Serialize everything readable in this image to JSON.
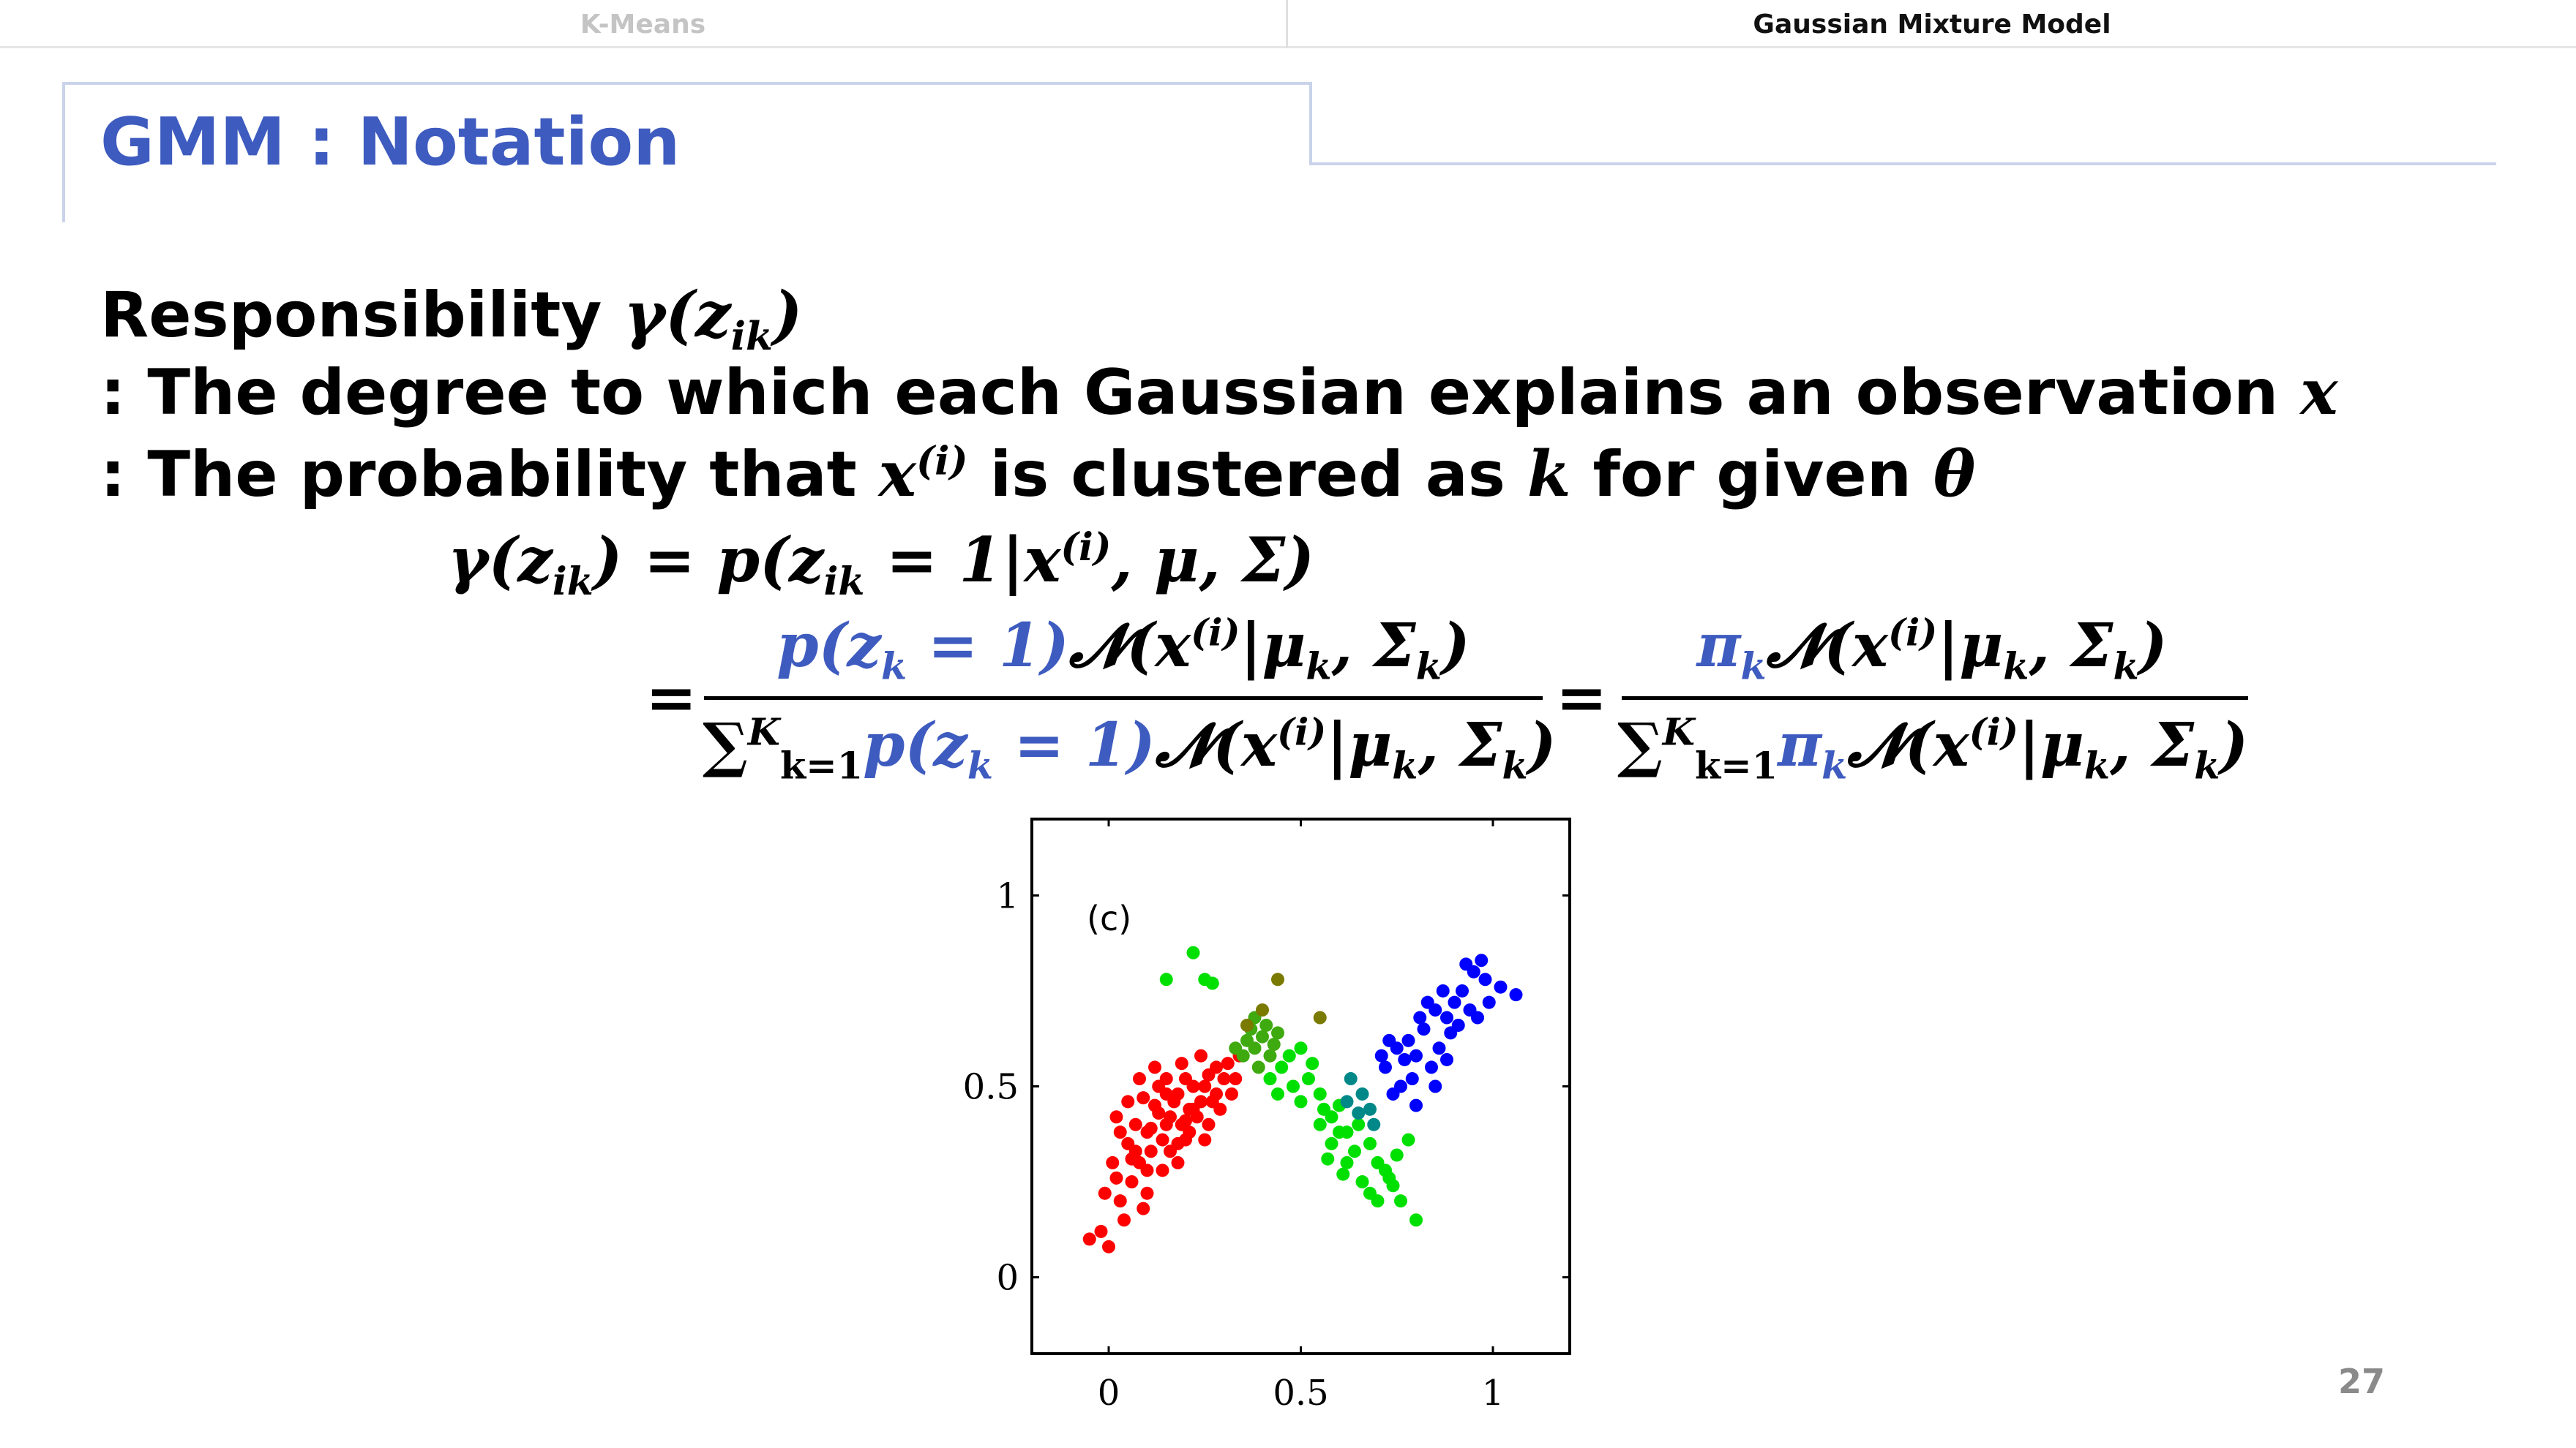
{
  "tabs": [
    {
      "label": "K-Means",
      "active": false
    },
    {
      "label": "Gaussian Mixture Model",
      "active": true
    }
  ],
  "slide_title": "GMM : Notation",
  "lines": {
    "l1_text": "Responsibility ",
    "l1_math": "γ(z",
    "l1_sub": "ik",
    "l1_close": ")",
    "l2_text": ": The degree to which each Gaussian explains an observation ",
    "l2_math": "x",
    "l3_text_a": ": The probability that ",
    "l3_x": "x",
    "l3_sup": "(i)",
    "l3_text_b": " is clustered as ",
    "l3_k": "k",
    "l3_text_c": " for given ",
    "l3_theta": "θ"
  },
  "equation": {
    "lhs": "γ(z",
    "lhs_sub": "ik",
    "lhs_close": ") = p(z",
    "rhs1_sub": "ik",
    "rhs1_rest": " = 1|x",
    "rhs1_sup": "(i)",
    "rhs1_end": ", μ, Σ)",
    "eq_sign": "=",
    "f1_num_blue": "p(z",
    "f1_num_blue_sub": "k",
    "f1_num_blue_end": " = 1)",
    "f1_num_rest": "𝓝(x",
    "f1_num_sup": "(i)",
    "f1_num_end": "|μ",
    "f1_num_sub2": "k",
    "f1_num_end2": ", Σ",
    "f1_num_sub3": "k",
    "f1_num_end3": ")",
    "sum_sym": "∑",
    "sum_top": "K",
    "sum_bot": "k=1",
    "f2_num_blue": "π",
    "f2_num_blue_sub": "k"
  },
  "chart_data": {
    "type": "scatter",
    "panel_label": "(c)",
    "xlim": [
      -0.2,
      1.2
    ],
    "ylim": [
      -0.2,
      1.2
    ],
    "x_ticks": [
      "0",
      "0.5",
      "1"
    ],
    "x_tick_values": [
      0,
      0.5,
      1
    ],
    "y_ticks": [
      "0",
      "0.5",
      "1"
    ],
    "y_tick_values": [
      0,
      0.5,
      1
    ],
    "series": [
      {
        "color": "#ff0000",
        "points": [
          [
            0.02,
            0.42
          ],
          [
            0.05,
            0.35
          ],
          [
            0.08,
            0.3
          ],
          [
            0.1,
            0.38
          ],
          [
            0.12,
            0.45
          ],
          [
            0.15,
            0.4
          ],
          [
            0.18,
            0.48
          ],
          [
            0.2,
            0.36
          ],
          [
            0.22,
            0.44
          ],
          [
            0.25,
            0.5
          ],
          [
            0.06,
            0.25
          ],
          [
            0.03,
            0.2
          ],
          [
            -0.02,
            0.12
          ],
          [
            -0.05,
            0.1
          ],
          [
            0.0,
            0.08
          ],
          [
            0.04,
            0.15
          ],
          [
            0.1,
            0.22
          ],
          [
            0.14,
            0.28
          ],
          [
            0.16,
            0.33
          ],
          [
            0.19,
            0.4
          ],
          [
            0.23,
            0.42
          ],
          [
            0.27,
            0.46
          ],
          [
            0.3,
            0.52
          ],
          [
            0.28,
            0.55
          ],
          [
            0.24,
            0.58
          ],
          [
            0.2,
            0.52
          ],
          [
            0.17,
            0.46
          ],
          [
            0.13,
            0.5
          ],
          [
            0.09,
            0.47
          ],
          [
            0.07,
            0.4
          ],
          [
            0.11,
            0.33
          ],
          [
            0.14,
            0.36
          ],
          [
            0.18,
            0.3
          ],
          [
            0.21,
            0.38
          ],
          [
            0.26,
            0.4
          ],
          [
            0.29,
            0.44
          ],
          [
            0.32,
            0.48
          ],
          [
            0.12,
            0.55
          ],
          [
            0.08,
            0.52
          ],
          [
            0.05,
            0.46
          ],
          [
            0.01,
            0.3
          ],
          [
            0.03,
            0.38
          ],
          [
            0.16,
            0.42
          ],
          [
            0.22,
            0.5
          ],
          [
            0.26,
            0.53
          ],
          [
            0.31,
            0.56
          ],
          [
            0.34,
            0.58
          ],
          [
            0.19,
            0.56
          ],
          [
            0.15,
            0.52
          ],
          [
            0.1,
            0.28
          ],
          [
            -0.01,
            0.22
          ],
          [
            0.02,
            0.26
          ],
          [
            0.07,
            0.33
          ],
          [
            0.13,
            0.43
          ],
          [
            0.24,
            0.46
          ],
          [
            0.28,
            0.48
          ],
          [
            0.33,
            0.52
          ],
          [
            0.18,
            0.35
          ],
          [
            0.21,
            0.44
          ],
          [
            0.25,
            0.36
          ],
          [
            0.09,
            0.18
          ],
          [
            0.06,
            0.31
          ],
          [
            0.15,
            0.48
          ],
          [
            0.2,
            0.41
          ],
          [
            0.11,
            0.39
          ]
        ]
      },
      {
        "color": "#00e000",
        "points": [
          [
            0.45,
            0.55
          ],
          [
            0.48,
            0.5
          ],
          [
            0.5,
            0.46
          ],
          [
            0.52,
            0.52
          ],
          [
            0.55,
            0.48
          ],
          [
            0.58,
            0.42
          ],
          [
            0.6,
            0.45
          ],
          [
            0.62,
            0.38
          ],
          [
            0.65,
            0.4
          ],
          [
            0.68,
            0.35
          ],
          [
            0.7,
            0.3
          ],
          [
            0.72,
            0.28
          ],
          [
            0.66,
            0.25
          ],
          [
            0.62,
            0.3
          ],
          [
            0.58,
            0.35
          ],
          [
            0.55,
            0.4
          ],
          [
            0.75,
            0.32
          ],
          [
            0.78,
            0.36
          ],
          [
            0.74,
            0.24
          ],
          [
            0.7,
            0.2
          ],
          [
            0.68,
            0.22
          ],
          [
            0.64,
            0.33
          ],
          [
            0.6,
            0.38
          ],
          [
            0.56,
            0.44
          ],
          [
            0.53,
            0.56
          ],
          [
            0.5,
            0.6
          ],
          [
            0.47,
            0.58
          ],
          [
            0.44,
            0.48
          ],
          [
            0.42,
            0.52
          ],
          [
            0.8,
            0.15
          ],
          [
            0.61,
            0.27
          ],
          [
            0.57,
            0.31
          ],
          [
            0.73,
            0.26
          ],
          [
            0.76,
            0.2
          ],
          [
            0.15,
            0.78
          ],
          [
            0.22,
            0.85
          ],
          [
            0.27,
            0.77
          ],
          [
            0.25,
            0.78
          ]
        ]
      },
      {
        "color": "#3faa10",
        "points": [
          [
            0.35,
            0.58
          ],
          [
            0.38,
            0.6
          ],
          [
            0.4,
            0.63
          ],
          [
            0.37,
            0.65
          ],
          [
            0.42,
            0.58
          ],
          [
            0.39,
            0.55
          ],
          [
            0.36,
            0.62
          ],
          [
            0.41,
            0.66
          ],
          [
            0.43,
            0.61
          ],
          [
            0.33,
            0.6
          ],
          [
            0.38,
            0.68
          ],
          [
            0.44,
            0.64
          ]
        ]
      },
      {
        "color": "#7a7a00",
        "points": [
          [
            0.44,
            0.78
          ],
          [
            0.55,
            0.68
          ],
          [
            0.36,
            0.66
          ],
          [
            0.4,
            0.7
          ]
        ]
      },
      {
        "color": "#008888",
        "points": [
          [
            0.63,
            0.52
          ],
          [
            0.66,
            0.48
          ],
          [
            0.68,
            0.44
          ],
          [
            0.65,
            0.43
          ],
          [
            0.69,
            0.4
          ],
          [
            0.62,
            0.46
          ]
        ]
      },
      {
        "color": "#0000ff",
        "points": [
          [
            0.72,
            0.55
          ],
          [
            0.75,
            0.6
          ],
          [
            0.78,
            0.62
          ],
          [
            0.8,
            0.58
          ],
          [
            0.82,
            0.65
          ],
          [
            0.85,
            0.7
          ],
          [
            0.88,
            0.68
          ],
          [
            0.9,
            0.72
          ],
          [
            0.92,
            0.75
          ],
          [
            0.95,
            0.8
          ],
          [
            0.98,
            0.78
          ],
          [
            1.02,
            0.76
          ],
          [
            1.06,
            0.74
          ],
          [
            0.93,
            0.82
          ],
          [
            0.97,
            0.83
          ],
          [
            0.86,
            0.6
          ],
          [
            0.84,
            0.55
          ],
          [
            0.79,
            0.52
          ],
          [
            0.76,
            0.5
          ],
          [
            0.74,
            0.48
          ],
          [
            0.81,
            0.68
          ],
          [
            0.87,
            0.75
          ],
          [
            0.89,
            0.64
          ],
          [
            0.91,
            0.66
          ],
          [
            0.94,
            0.7
          ],
          [
            0.99,
            0.72
          ],
          [
            0.83,
            0.72
          ],
          [
            0.77,
            0.57
          ],
          [
            0.71,
            0.58
          ],
          [
            0.88,
            0.57
          ],
          [
            0.85,
            0.5
          ],
          [
            0.96,
            0.68
          ],
          [
            0.8,
            0.45
          ],
          [
            0.73,
            0.62
          ]
        ]
      }
    ]
  },
  "page_number": "27"
}
